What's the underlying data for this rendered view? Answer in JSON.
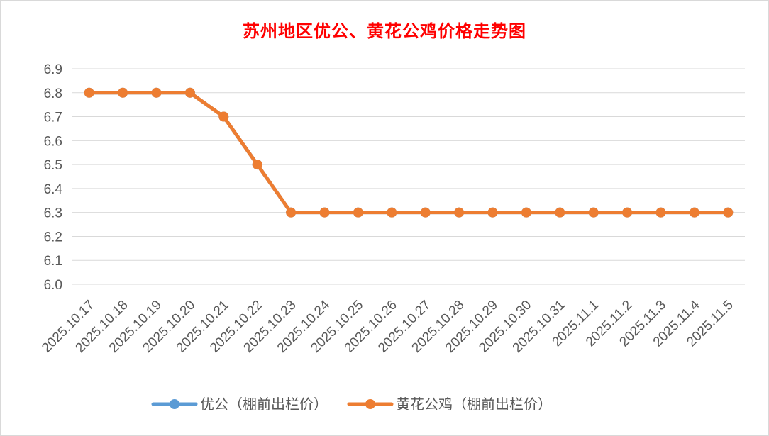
{
  "chart_data": {
    "type": "line",
    "title": "苏州地区优公、黄花公鸡价格走势图",
    "xlabel": "",
    "ylabel": "",
    "categories": [
      "2025.10.17",
      "2025.10.18",
      "2025.10.19",
      "2025.10.20",
      "2025.10.21",
      "2025.10.22",
      "2025.10.23",
      "2025.10.24",
      "2025.10.25",
      "2025.10.26",
      "2025.10.27",
      "2025.10.28",
      "2025.10.29",
      "2025.10.30",
      "2025.10.31",
      "2025.11.1",
      "2025.11.2",
      "2025.11.3",
      "2025.11.4",
      "2025.11.5"
    ],
    "ylim": [
      6.0,
      6.9
    ],
    "yticks": [
      "6.9",
      "6.8",
      "6.7",
      "6.6",
      "6.5",
      "6.4",
      "6.3",
      "6.2",
      "6.1",
      "6.0"
    ],
    "grid": true,
    "legend_position": "bottom",
    "series": [
      {
        "name": "优公（棚前出栏价）",
        "color": "#5b9bd5",
        "values": [
          6.8,
          6.8,
          6.8,
          6.8,
          6.7,
          6.5,
          6.3,
          6.3,
          6.3,
          6.3,
          6.3,
          6.3,
          6.3,
          6.3,
          6.3,
          6.3,
          6.3,
          6.3,
          6.3,
          6.3
        ]
      },
      {
        "name": "黄花公鸡（棚前出栏价）",
        "color": "#ed7d31",
        "values": [
          6.8,
          6.8,
          6.8,
          6.8,
          6.7,
          6.5,
          6.3,
          6.3,
          6.3,
          6.3,
          6.3,
          6.3,
          6.3,
          6.3,
          6.3,
          6.3,
          6.3,
          6.3,
          6.3,
          6.3
        ]
      }
    ]
  }
}
